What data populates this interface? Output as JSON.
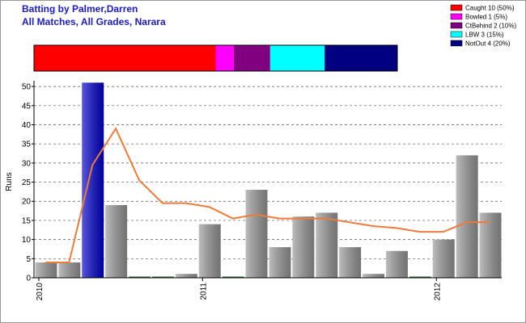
{
  "chart_data": {
    "type": "bar",
    "title": "Batting by Palmer,Darren",
    "subtitle": "All Matches, All Grades, Narara",
    "ylabel": "Runs",
    "categories": [
      "2010",
      null,
      null,
      null,
      null,
      null,
      null,
      "2011",
      null,
      null,
      null,
      null,
      null,
      null,
      null,
      null,
      null,
      "2012",
      null,
      null
    ],
    "values": [
      4,
      4,
      51,
      19,
      0,
      0,
      1,
      14,
      0,
      23,
      8,
      16,
      17,
      8,
      1,
      7,
      0,
      10,
      32,
      17
    ],
    "colors": [
      "#999999",
      "#999999",
      "#0000cc",
      "#999999",
      "#999999",
      "#999999",
      "#999999",
      "#999999",
      "#999999",
      "#999999",
      "#999999",
      "#999999",
      "#999999",
      "#999999",
      "#999999",
      "#999999",
      "#999999",
      "#999999",
      "#999999",
      "#999999"
    ],
    "line": {
      "values": [
        4,
        4,
        29.5,
        39,
        25.5,
        19.5,
        19.5,
        18.5,
        15.5,
        16.5,
        15.5,
        15.5,
        15.5,
        14.5,
        13.5,
        13,
        12,
        12,
        14.5,
        14.5
      ],
      "color": "#f07a3a"
    },
    "ylim": [
      0,
      51.5
    ],
    "yticks": [
      0,
      5,
      10,
      15,
      20,
      25,
      30,
      35,
      40,
      45,
      50
    ],
    "grid": true,
    "breakdown": {
      "categories": [
        "Caught 10 (50%)",
        "Bowled 1 (5%)",
        "CtBehind 2 (10%)",
        "LBW 3 (15%)",
        "NotOut 4 (20%)"
      ],
      "values": [
        50,
        5,
        10,
        15,
        20
      ],
      "colors": [
        "#ff0000",
        "#ff00ff",
        "#800080",
        "#00ffff",
        "#000080"
      ]
    }
  }
}
